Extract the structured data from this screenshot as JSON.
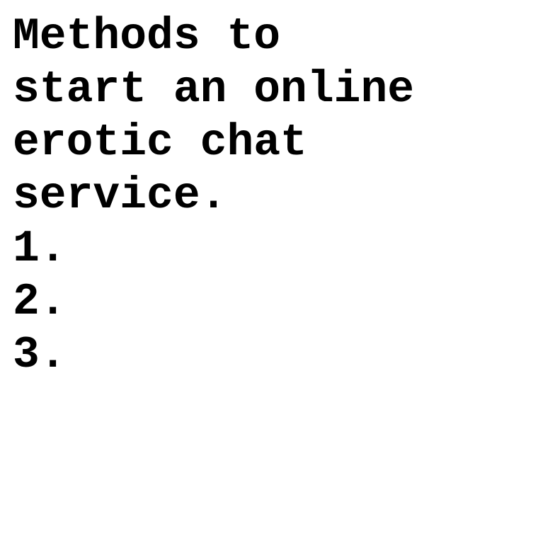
{
  "document": {
    "title_lines": [
      "Methods to",
      "start an online",
      "erotic chat",
      "service."
    ],
    "list_items": [
      "1.",
      "2.",
      "3."
    ]
  }
}
